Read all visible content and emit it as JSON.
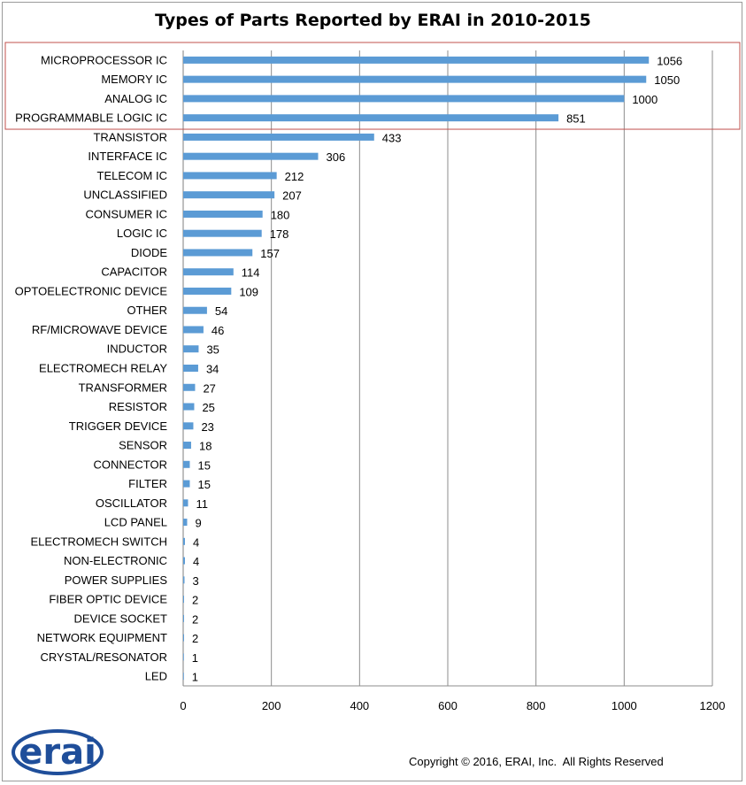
{
  "chart_data": {
    "type": "bar",
    "orientation": "horizontal",
    "title": "Types of Parts Reported by ERAI in 2010-2015",
    "xlim": [
      0,
      1200
    ],
    "xticks": [
      0,
      200,
      400,
      600,
      800,
      1000,
      1200
    ],
    "grid": "vertical",
    "bar_color": "#5b9bd5",
    "highlight_color": "#c0504d",
    "highlighted_categories": [
      "MICROPROCESSOR IC",
      "MEMORY IC",
      "ANALOG IC",
      "PROGRAMMABLE LOGIC IC"
    ],
    "categories": [
      "MICROPROCESSOR IC",
      "MEMORY IC",
      "ANALOG IC",
      "PROGRAMMABLE LOGIC IC",
      "TRANSISTOR",
      "INTERFACE IC",
      "TELECOM IC",
      "UNCLASSIFIED",
      "CONSUMER IC",
      "LOGIC IC",
      "DIODE",
      "CAPACITOR",
      "OPTOELECTRONIC DEVICE",
      "OTHER",
      "RF/MICROWAVE DEVICE",
      "INDUCTOR",
      "ELECTROMECH RELAY",
      "TRANSFORMER",
      "RESISTOR",
      "TRIGGER DEVICE",
      "SENSOR",
      "CONNECTOR",
      "FILTER",
      "OSCILLATOR",
      "LCD PANEL",
      "ELECTROMECH SWITCH",
      "NON-ELECTRONIC",
      "POWER SUPPLIES",
      "FIBER OPTIC DEVICE",
      "DEVICE SOCKET",
      "NETWORK EQUIPMENT",
      "CRYSTAL/RESONATOR",
      "LED"
    ],
    "values": [
      1056,
      1050,
      1000,
      851,
      433,
      306,
      212,
      207,
      180,
      178,
      157,
      114,
      109,
      54,
      46,
      35,
      34,
      27,
      25,
      23,
      18,
      15,
      15,
      11,
      9,
      4,
      4,
      3,
      2,
      2,
      2,
      1,
      1
    ]
  },
  "logo": {
    "text": "erai",
    "color": "#1f4e9a"
  },
  "copyright": "Copyright © 2016, ERAI, Inc.  All Rights Reserved"
}
